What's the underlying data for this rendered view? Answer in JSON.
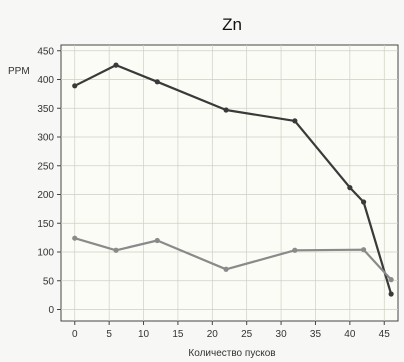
{
  "chart_data": {
    "type": "line",
    "title": "Zn",
    "xlabel": "Количество пусков",
    "ylabel": "PPM",
    "xlim": [
      -2,
      47
    ],
    "ylim": [
      -20,
      460
    ],
    "x_ticks": [
      0,
      5,
      10,
      15,
      20,
      25,
      30,
      35,
      40,
      45
    ],
    "y_ticks": [
      0,
      50,
      100,
      150,
      200,
      250,
      300,
      350,
      400,
      450
    ],
    "grid": true,
    "series": [
      {
        "color": "#3a3a3a",
        "points": [
          [
            0,
            389
          ],
          [
            6,
            425
          ],
          [
            12,
            396
          ],
          [
            22,
            347
          ],
          [
            32,
            328
          ],
          [
            40,
            212
          ],
          [
            42,
            187
          ],
          [
            46,
            27
          ]
        ]
      },
      {
        "color": "#8a8a8a",
        "points": [
          [
            0,
            124
          ],
          [
            6,
            103
          ],
          [
            12,
            120
          ],
          [
            22,
            70
          ],
          [
            32,
            103
          ],
          [
            42,
            104
          ],
          [
            46,
            52
          ]
        ]
      }
    ]
  }
}
